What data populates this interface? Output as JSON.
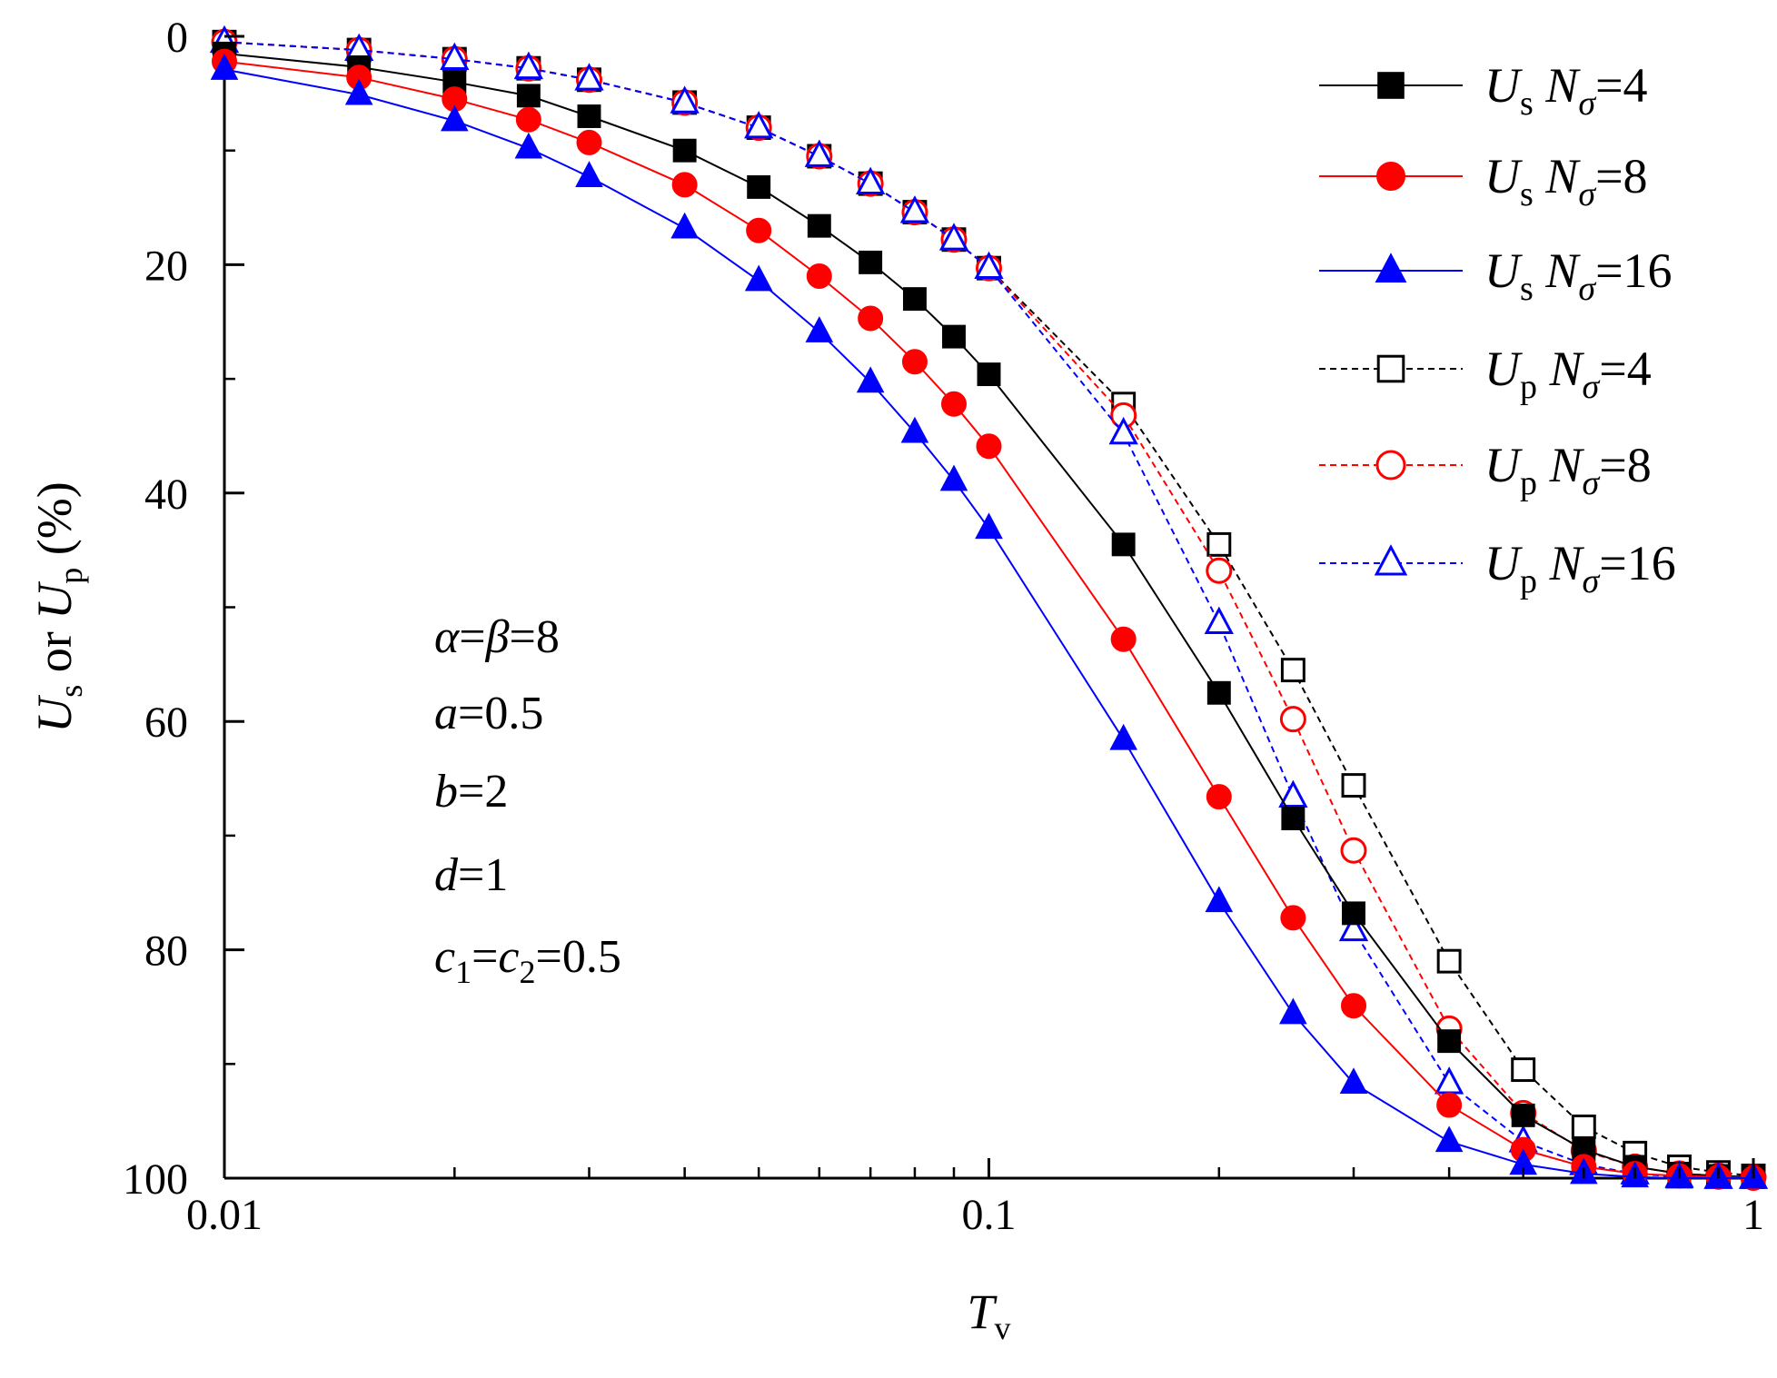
{
  "chart_data": {
    "type": "line",
    "title": "",
    "x_axis": {
      "label": "T",
      "label_sub": "v",
      "scale": "log",
      "range": [
        0.01,
        1
      ],
      "ticks": [
        0.01,
        0.1,
        1
      ],
      "tick_labels": [
        "0.01",
        "0.1",
        "1"
      ]
    },
    "y_axis": {
      "label_parts": [
        {
          "text": "U",
          "italic": true
        },
        {
          "text": "s",
          "sub": true
        },
        {
          "text": " or "
        },
        {
          "text": "U",
          "italic": true
        },
        {
          "text": "p",
          "sub": true
        },
        {
          "text": " (%)"
        }
      ],
      "inverted": true,
      "range": [
        0,
        100
      ],
      "ticks": [
        0,
        20,
        40,
        60,
        80,
        100
      ],
      "tick_labels": [
        "0",
        "20",
        "40",
        "60",
        "80",
        "100"
      ]
    },
    "x": [
      0.01,
      0.015,
      0.02,
      0.025,
      0.03,
      0.04,
      0.05,
      0.06,
      0.07,
      0.08,
      0.09,
      0.1,
      0.15,
      0.2,
      0.25,
      0.3,
      0.4,
      0.5,
      0.6,
      0.7,
      0.8,
      0.9,
      1.0
    ],
    "series": [
      {
        "name": "Us Nσ=4",
        "U": "U",
        "sub": "s",
        "n": "4",
        "color": "#000000",
        "marker": "square",
        "filled": true,
        "dashed": false,
        "values": [
          1.5,
          2.7,
          4.0,
          5.2,
          7.0,
          10.0,
          13.2,
          16.6,
          19.8,
          23.0,
          26.3,
          29.6,
          44.5,
          57.5,
          68.5,
          76.8,
          88.0,
          94.5,
          97.5,
          99.0,
          99.6,
          99.8,
          99.9
        ]
      },
      {
        "name": "Us Nσ=8",
        "U": "U",
        "sub": "s",
        "n": "8",
        "color": "#ff0000",
        "marker": "circle",
        "filled": true,
        "dashed": false,
        "values": [
          2.2,
          3.6,
          5.5,
          7.3,
          9.3,
          13.0,
          17.0,
          21.0,
          24.7,
          28.5,
          32.2,
          35.9,
          52.8,
          66.6,
          77.2,
          84.9,
          93.6,
          97.5,
          99.0,
          99.6,
          99.8,
          99.9,
          100.0
        ]
      },
      {
        "name": "Us Nσ=16",
        "U": "U",
        "sub": "s",
        "n": "16",
        "color": "#0000ff",
        "marker": "triangle",
        "filled": true,
        "dashed": false,
        "values": [
          2.9,
          5.1,
          7.4,
          9.8,
          12.3,
          16.8,
          21.4,
          25.9,
          30.3,
          34.7,
          38.9,
          43.1,
          61.6,
          75.8,
          85.6,
          91.7,
          96.8,
          98.8,
          99.6,
          99.9,
          100.0,
          100.0,
          100.0
        ]
      },
      {
        "name": "Up Nσ=4",
        "U": "U",
        "sub": "p",
        "n": "4",
        "color": "#000000",
        "marker": "square",
        "filled": false,
        "dashed": true,
        "values": [
          0.5,
          1.2,
          2.0,
          2.8,
          3.8,
          5.8,
          8.0,
          10.5,
          12.9,
          15.4,
          17.8,
          20.3,
          32.2,
          44.5,
          55.5,
          65.6,
          81.0,
          90.5,
          95.5,
          97.8,
          99.0,
          99.5,
          99.8
        ]
      },
      {
        "name": "Up Nσ=8",
        "U": "U",
        "sub": "p",
        "n": "8",
        "color": "#ff0000",
        "marker": "circle",
        "filled": false,
        "dashed": true,
        "values": [
          0.5,
          1.2,
          2.0,
          2.8,
          3.8,
          5.8,
          8.0,
          10.5,
          12.9,
          15.4,
          17.8,
          20.3,
          33.2,
          46.8,
          59.8,
          71.3,
          86.9,
          94.3,
          97.6,
          99.0,
          99.6,
          99.8,
          99.9
        ]
      },
      {
        "name": "Up Nσ=16",
        "U": "U",
        "sub": "p",
        "n": "16",
        "color": "#0000ff",
        "marker": "triangle",
        "filled": false,
        "dashed": true,
        "values": [
          0.5,
          1.2,
          2.0,
          2.8,
          3.8,
          5.8,
          8.0,
          10.5,
          12.9,
          15.4,
          17.8,
          20.3,
          34.8,
          51.4,
          66.6,
          78.3,
          91.7,
          96.8,
          98.8,
          99.6,
          99.9,
          100.0,
          100.0
        ]
      }
    ],
    "legend": {
      "position": "top-right",
      "n_label": "N",
      "sigma": "σ"
    },
    "annotations": [
      [
        {
          "text": "α",
          "italic": true
        },
        {
          "text": "="
        },
        {
          "text": "β",
          "italic": true
        },
        {
          "text": "=8"
        }
      ],
      [
        {
          "text": "a",
          "italic": true
        },
        {
          "text": "=0.5"
        }
      ],
      [
        {
          "text": "b",
          "italic": true
        },
        {
          "text": "=2"
        }
      ],
      [
        {
          "text": "d",
          "italic": true
        },
        {
          "text": "=1"
        }
      ],
      [
        {
          "text": "c",
          "italic": true
        },
        {
          "text": "1",
          "sub": true
        },
        {
          "text": "="
        },
        {
          "text": "c",
          "italic": true
        },
        {
          "text": "2",
          "sub": true
        },
        {
          "text": "=0.5"
        }
      ]
    ],
    "grid": false
  }
}
